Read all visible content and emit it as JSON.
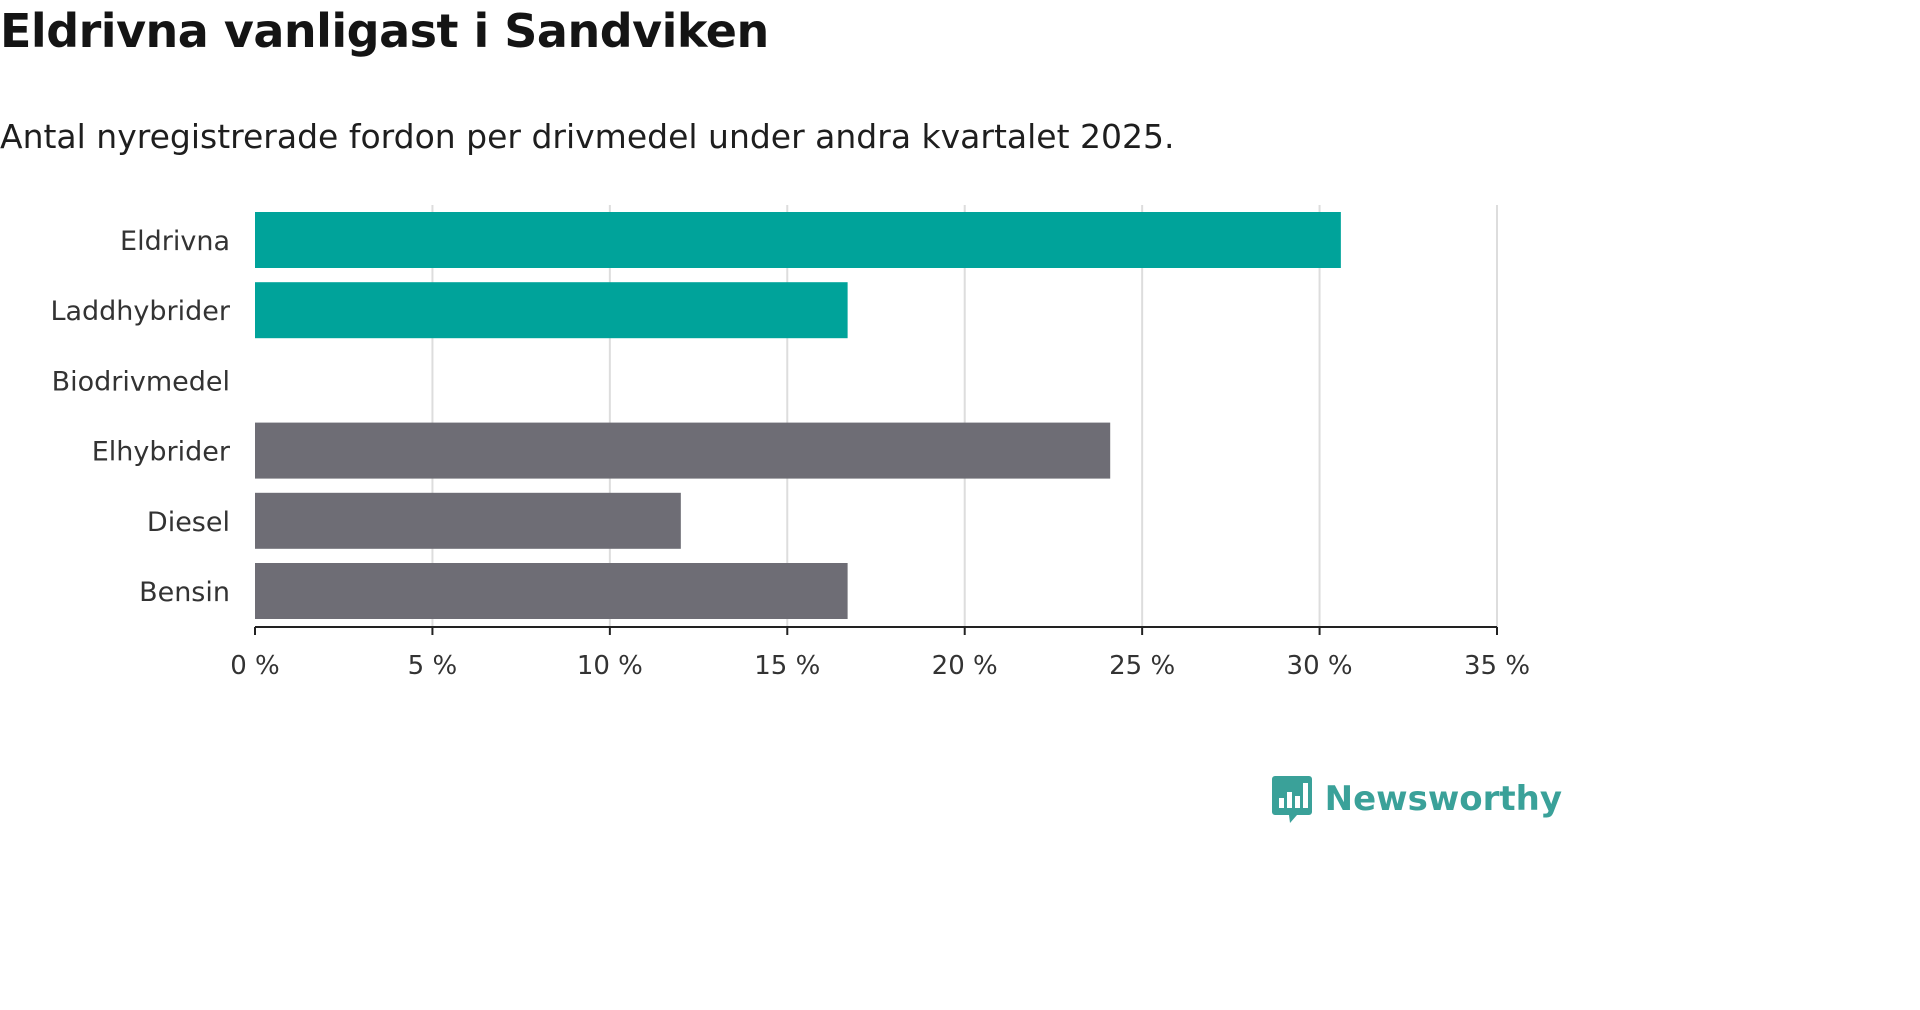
{
  "header": {
    "title": "Eldrivna vanligast i Sandviken",
    "subtitle": "Antal nyregistrerade fordon per drivmedel under andra kvartalet 2025."
  },
  "brand": {
    "name": "Newsworthy",
    "icon": "newsworthy-logo-icon",
    "color": "#3aa199"
  },
  "colors": {
    "highlight": "#00a39a",
    "other": "#6e6d75",
    "grid": "#dddddd",
    "axis": "#222222"
  },
  "chart_data": {
    "type": "bar",
    "orientation": "horizontal",
    "categories": [
      "Eldrivna",
      "Laddhybrider",
      "Biodrivmedel",
      "Elhybrider",
      "Diesel",
      "Bensin"
    ],
    "values": [
      30.6,
      16.7,
      0,
      24.1,
      12.0,
      16.7
    ],
    "highlighted": [
      true,
      true,
      true,
      false,
      false,
      false
    ],
    "xlim": [
      0,
      35
    ],
    "xticks": [
      0,
      5,
      10,
      15,
      20,
      25,
      30,
      35
    ],
    "xtick_labels": [
      "0 %",
      "5 %",
      "10 %",
      "15 %",
      "20 %",
      "25 %",
      "30 %",
      "35 %"
    ],
    "grid": "vertical"
  }
}
